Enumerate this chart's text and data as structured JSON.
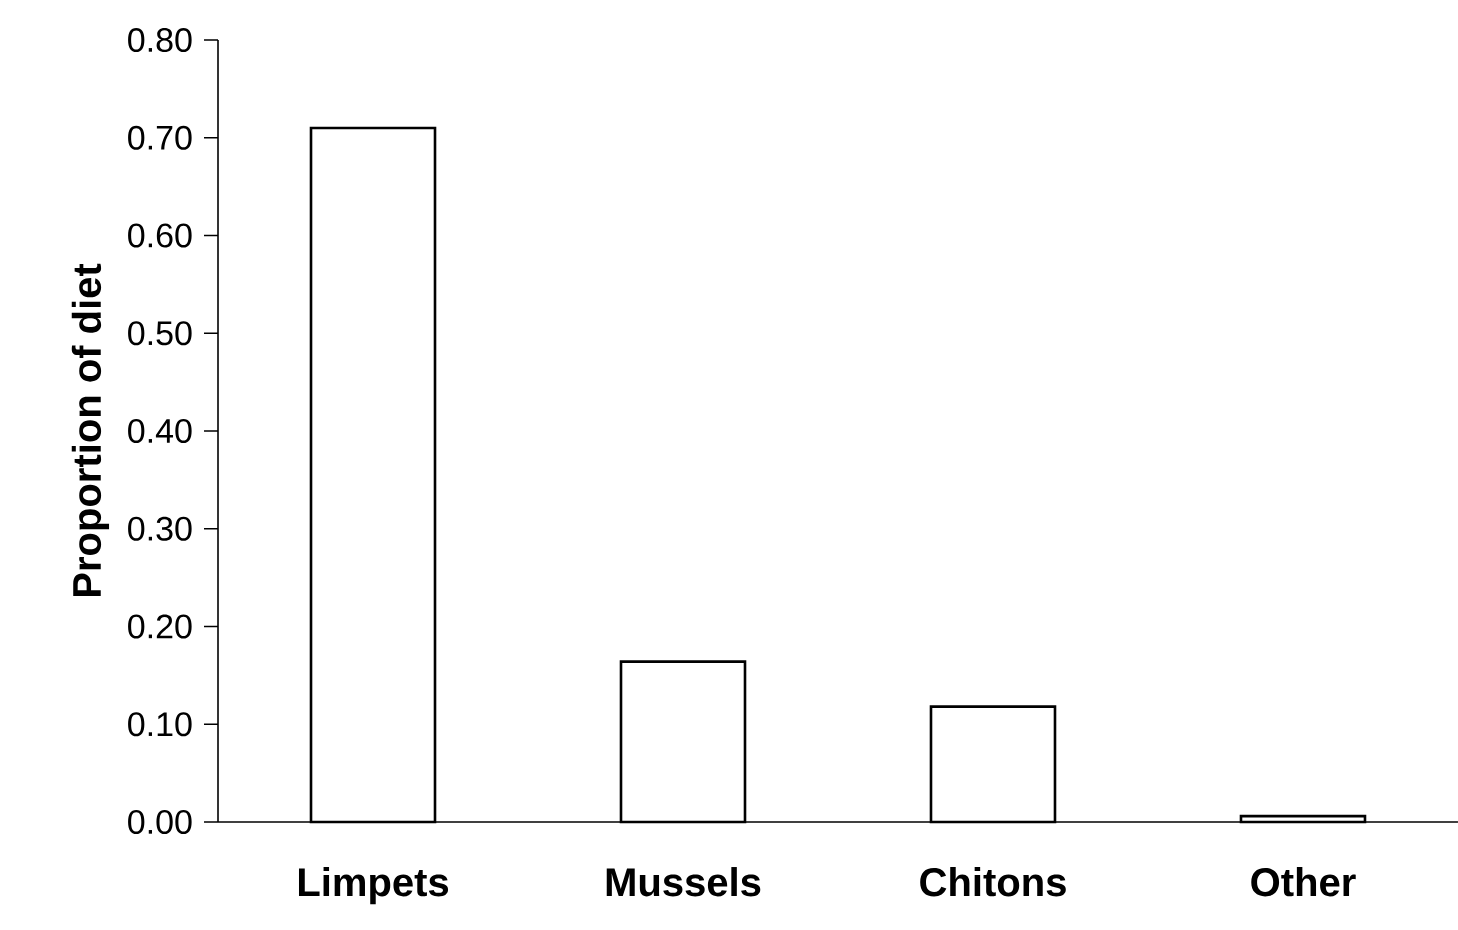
{
  "chart_data": {
    "type": "bar",
    "ylabel": "Proportion of diet",
    "categories": [
      "Limpets",
      "Mussels",
      "Chitons",
      "Other"
    ],
    "values": [
      0.71,
      0.164,
      0.118,
      0.006
    ],
    "color": "#ffffff",
    "ylim": [
      0,
      0.8
    ],
    "yticks": [
      {
        "value": 0,
        "label": "0.00"
      },
      {
        "value": 0.1,
        "label": "0.10"
      },
      {
        "value": 0.2,
        "label": "0.20"
      },
      {
        "value": 0.3,
        "label": "0.30"
      },
      {
        "value": 0.4,
        "label": "0.40"
      },
      {
        "value": 0.5,
        "label": "0.50"
      },
      {
        "value": 0.6,
        "label": "0.60"
      },
      {
        "value": 0.7,
        "label": "0.70"
      },
      {
        "value": 0.8,
        "label": "0.80"
      }
    ],
    "grid": false
  }
}
